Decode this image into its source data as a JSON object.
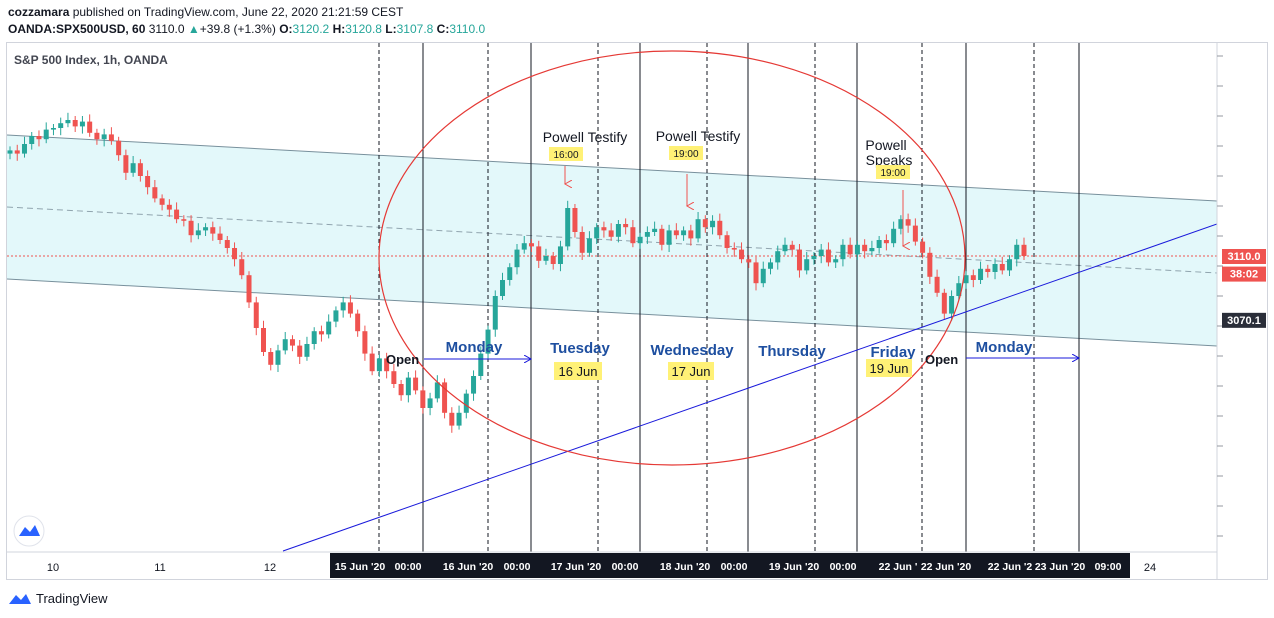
{
  "header": {
    "publisher": "cozzamara",
    "published_text": " published on TradingView.com, June 22, 2020 21:21:59 CEST",
    "symbol": "OANDA:SPX500USD, 60",
    "last": "3110.0",
    "change_arrow": "▲",
    "change": "+39.8 (+1.3%)",
    "o_label": "O:",
    "o": "3120.2",
    "h_label": "H:",
    "h": "3120.8",
    "l_label": "L:",
    "l": "3107.8",
    "c_label": "C:",
    "c": "3110.0"
  },
  "footer": {
    "brand": "TradingView",
    "logo_icon": "tradingview-logo-icon"
  },
  "chart_data": {
    "type": "candlestick",
    "title": "S&P 500 Index, 1h, OANDA",
    "ylim": [
      3000,
      3235
    ],
    "price_labels": [
      {
        "text": "3110.0",
        "value": 3110.0,
        "bg": "#ef5350",
        "color": "#ffffff"
      },
      {
        "text": "38:02",
        "value": 3104.0,
        "bg": "#ef5350",
        "color": "#ffffff"
      },
      {
        "text": "3070.1",
        "value": 3070.1,
        "bg": "#2a2e39",
        "color": "#ffffff"
      }
    ],
    "x_ticks": [
      "10",
      "11",
      "12",
      "24"
    ],
    "x_ticks_highlight": [
      "15 Jun '20",
      "00:00",
      "16 Jun '20",
      "00:00",
      "17 Jun '20",
      "00:00",
      "18 Jun '20",
      "00:00",
      "19 Jun '20",
      "00:00",
      "22 Jun '",
      "22 Jun '20",
      "22 Jun '2",
      "23 Jun '20",
      "09:00"
    ],
    "day_labels": [
      "Monday",
      "Tuesday",
      "Wednesday",
      "Thursday",
      "Friday",
      "Monday"
    ],
    "date_labels": [
      "16 Jun",
      "17 Jun",
      "19 Jun"
    ],
    "open_labels": [
      "Open",
      "Open"
    ],
    "event_labels": [
      {
        "title": "Powell Testify",
        "time": "16:00"
      },
      {
        "title": "Powell Testify",
        "time": "19:00"
      },
      {
        "title": "Powell Speaks",
        "time": "19:00"
      }
    ],
    "colors": {
      "up": "#26a69a",
      "down": "#ef5350",
      "channel_fill": "#e0f7fa",
      "trend": "#1a1adb",
      "ellipse": "#e53935",
      "day_label": "#1e4fa0"
    },
    "closes": [
      3176.0,
      3174.0,
      3180.0,
      3185.0,
      3183.0,
      3189.0,
      3190.0,
      3193.0,
      3195.0,
      3191.0,
      3194.0,
      3187.0,
      3183.0,
      3186.0,
      3182.0,
      3173.0,
      3162.0,
      3168.0,
      3160.0,
      3153.0,
      3146.0,
      3142.0,
      3139.0,
      3133.0,
      3132.0,
      3123.0,
      3126.0,
      3128.0,
      3124.0,
      3120.0,
      3115.0,
      3108.0,
      3098.0,
      3081.0,
      3065.0,
      3050.0,
      3042.0,
      3051.0,
      3058.0,
      3054.0,
      3047.0,
      3055.0,
      3063.0,
      3061.0,
      3069.0,
      3076.0,
      3081.0,
      3074.0,
      3063.0,
      3049.0,
      3038.0,
      3046.0,
      3038.0,
      3030.0,
      3023.0,
      3034.0,
      3026.0,
      3015.0,
      3021.0,
      3031.0,
      3012.0,
      3004.0,
      3012.0,
      3024.0,
      3035.0,
      3049.0,
      3064.0,
      3085.0,
      3095.0,
      3103.0,
      3114.0,
      3118.0,
      3116.0,
      3107.0,
      3110.0,
      3105.0,
      3116.0,
      3140.0,
      3125.0,
      3112.0,
      3121.0,
      3128.0,
      3126.0,
      3122.0,
      3130.0,
      3128.0,
      3118.0,
      3122.0,
      3125.0,
      3127.0,
      3117.0,
      3126.0,
      3123.0,
      3126.0,
      3121.0,
      3133.0,
      3128.0,
      3132.0,
      3123.0,
      3115.0,
      3114.0,
      3108.0,
      3106.0,
      3093.0,
      3102.0,
      3106.0,
      3113.0,
      3117.0,
      3114.0,
      3101.0,
      3108.0,
      3110.0,
      3114.0,
      3106.0,
      3108.0,
      3117.0,
      3111.0,
      3117.0,
      3113.0,
      3115.0,
      3120.0,
      3118.0,
      3127.0,
      3133.0,
      3129.0,
      3119.0,
      3112.0,
      3097.0,
      3087.0,
      3074.0,
      3085.0,
      3093.0,
      3098.0,
      3095.0,
      3102.0,
      3100.0,
      3105.0,
      3101.0,
      3108.0,
      3117.0,
      3110.0
    ]
  }
}
